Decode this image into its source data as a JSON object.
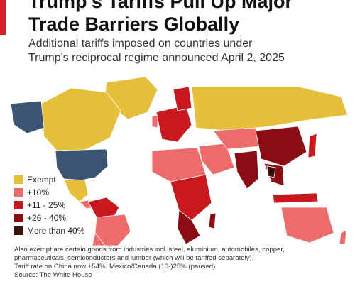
{
  "title_lines": [
    "Trump's Tariffs Pull Up Major",
    "Trade Barriers Globally"
  ],
  "subtitle_lines": [
    "Additional tariffs imposed on countries under",
    "Trump's reciprocal regime announced April 2, 2025"
  ],
  "colors": {
    "exempt": "#e6bf3a",
    "tier_10": "#ee6b6b",
    "tier_11_25": "#c8191f",
    "tier_26_40": "#8a0d14",
    "tier_40_plus": "#3a140c",
    "us": "#3c5572",
    "ocean": "#ffffff",
    "border": "#ffffff",
    "accent": "#d6202b"
  },
  "legend": [
    {
      "label": "Exempt",
      "color_key": "exempt"
    },
    {
      "label": "+10%",
      "color_key": "tier_10"
    },
    {
      "label": "+11 - 25%",
      "color_key": "tier_11_25"
    },
    {
      "label": "+26 - 40%",
      "color_key": "tier_26_40"
    },
    {
      "label": "More than 40%",
      "color_key": "tier_40_plus"
    }
  ],
  "footnote_lines": [
    "Also exempt are certain goods from industries incl. steel, aluminium, automobiles, copper,",
    "pharmaceuticals, semiconductors and lumber (which will be tariffed separately).",
    "Tariff rate on China now +54%. Mexico/Canada (10-)25% (paused)",
    "Source: The White House"
  ]
}
